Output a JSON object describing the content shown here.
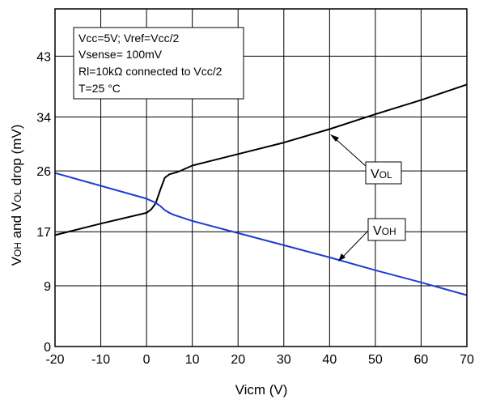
{
  "chart_data": {
    "type": "line",
    "xlabel": "Vicm (V)",
    "ylabel_main": "V",
    "ylabel_sub1": "OH",
    "ylabel_mid": " and V",
    "ylabel_sub2": "OL",
    "ylabel_end": " drop (mV)",
    "xlim": [
      -20,
      70
    ],
    "ylim": [
      0,
      50
    ],
    "x_ticks": [
      -20,
      -10,
      0,
      10,
      20,
      30,
      40,
      50,
      60,
      70
    ],
    "x_tick_labels": [
      "-20",
      "-10",
      "0",
      "10",
      "20",
      "30",
      "40",
      "50",
      "60",
      "70"
    ],
    "y_ticks": [
      0,
      9,
      17,
      26,
      34,
      43
    ],
    "y_tick_labels": [
      "0",
      "9",
      "17",
      "26",
      "34",
      "43"
    ],
    "grid": true,
    "annotation_lines": [
      "Vcc=5V; Vref=Vcc/2",
      "Vsense= 100mV",
      "Rl=10kΩ connected to Vcc/2",
      "T=25 °C"
    ],
    "series": [
      {
        "name": "VOL",
        "label_main": "V",
        "label_sub": "OL",
        "color": "#000000",
        "x": [
          -20,
          -10,
          0,
          1,
          2,
          3,
          4,
          5,
          6,
          7,
          10,
          20,
          30,
          40,
          50,
          60,
          70
        ],
        "y": [
          16.5,
          18.2,
          19.8,
          20.3,
          21.2,
          23.2,
          25.0,
          25.5,
          25.7,
          25.9,
          26.8,
          28.5,
          30.2,
          32.2,
          34.4,
          36.5,
          38.8
        ]
      },
      {
        "name": "VOH",
        "label_main": "V",
        "label_sub": "OH",
        "color": "#1f3bd1",
        "x": [
          -20,
          -10,
          0,
          1,
          2,
          3,
          4,
          5,
          6,
          10,
          20,
          30,
          40,
          50,
          60,
          70
        ],
        "y": [
          25.7,
          23.8,
          21.9,
          21.6,
          21.3,
          20.8,
          20.2,
          19.8,
          19.5,
          18.6,
          16.8,
          15.0,
          13.2,
          11.3,
          9.5,
          7.6
        ]
      }
    ]
  }
}
